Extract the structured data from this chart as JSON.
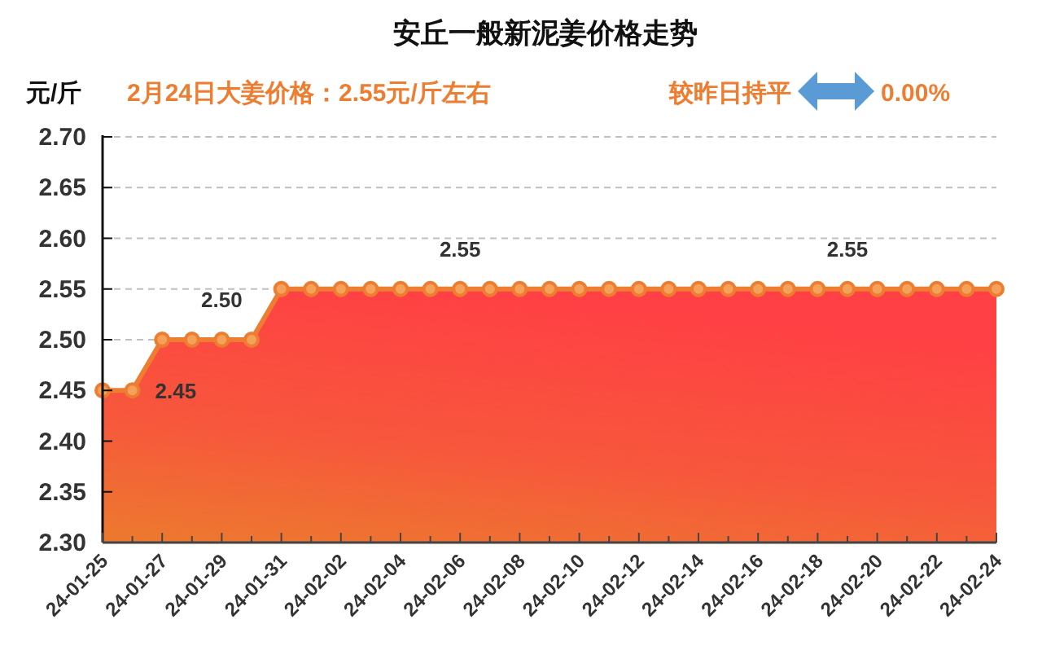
{
  "chart_data": {
    "type": "area",
    "title": "安丘一般新泥姜价格走势",
    "ylabel": "元/斤",
    "annotations": [
      "2月24日大姜价格：2.55元/斤左右",
      "较昨日持平",
      "0.00%"
    ],
    "categories": [
      "24-01-25",
      null,
      "24-01-27",
      null,
      "24-01-29",
      null,
      "24-01-31",
      null,
      "24-02-02",
      null,
      "24-02-04",
      null,
      "24-02-06",
      null,
      "24-02-08",
      null,
      "24-02-10",
      null,
      "24-02-12",
      null,
      "24-02-14",
      null,
      "24-02-16",
      null,
      "24-02-18",
      null,
      "24-02-20",
      null,
      "24-02-22",
      null,
      "24-02-24"
    ],
    "series": [
      {
        "color": "#ed7d31",
        "values": [
          2.45,
          2.45,
          2.5,
          2.5,
          2.5,
          2.5,
          2.55,
          2.55,
          2.55,
          2.55,
          2.55,
          2.55,
          2.55,
          2.55,
          2.55,
          2.55,
          2.55,
          2.55,
          2.55,
          2.55,
          2.55,
          2.55,
          2.55,
          2.55,
          2.55,
          2.55,
          2.55,
          2.55,
          2.55,
          2.55,
          2.55
        ],
        "value_labels": [
          null,
          "2.45",
          null,
          null,
          "2.50",
          null,
          null,
          null,
          null,
          null,
          null,
          null,
          "2.55",
          null,
          null,
          null,
          null,
          null,
          null,
          null,
          null,
          null,
          null,
          null,
          null,
          "2.55",
          null,
          null,
          null,
          null,
          null
        ]
      }
    ],
    "ylim": [
      2.3,
      2.7
    ],
    "yticks": [
      {
        "value": 2.3,
        "label": "2.30"
      },
      2.35,
      {
        "value": 2.4,
        "label": "2.40"
      },
      2.45,
      {
        "value": 2.5,
        "label": "2.50"
      },
      2.55,
      {
        "value": 2.6,
        "label": "2.60"
      },
      2.65,
      {
        "value": 2.7,
        "label": "2.70"
      }
    ],
    "grid": "y",
    "marker": "circle"
  }
}
